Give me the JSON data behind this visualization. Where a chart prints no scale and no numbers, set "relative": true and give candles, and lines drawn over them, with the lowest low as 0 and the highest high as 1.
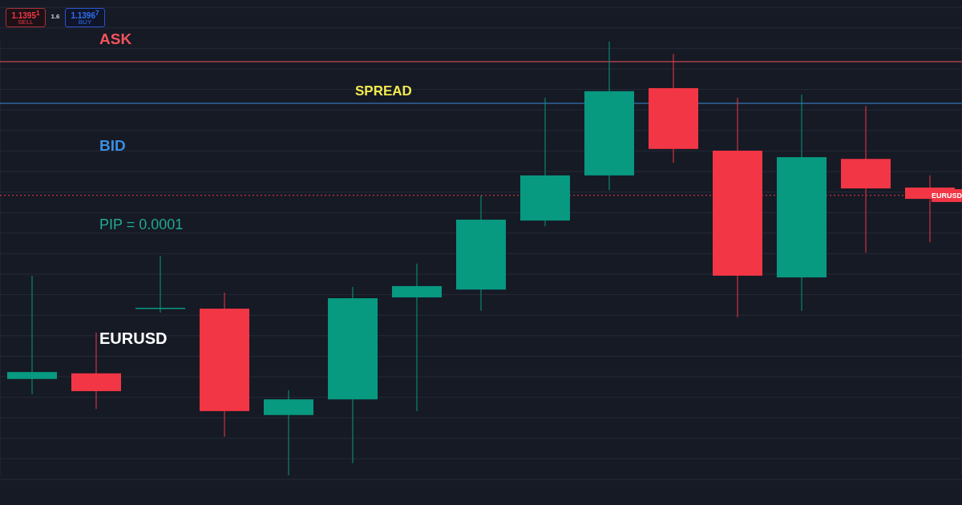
{
  "chart_data": {
    "type": "candlestick",
    "relative": true,
    "categories": [
      null,
      null,
      null,
      null,
      null,
      null,
      null,
      null,
      null,
      null,
      null,
      null,
      null,
      null,
      null
    ],
    "ohlc": [
      [
        0.222,
        0.46,
        0.187,
        0.238
      ],
      [
        0.235,
        0.329,
        0.153,
        0.194
      ],
      [
        0.384,
        0.506,
        0.375,
        0.386
      ],
      [
        0.384,
        0.421,
        0.089,
        0.148
      ],
      [
        0.139,
        0.196,
        0,
        0.175
      ],
      [
        0.175,
        0.434,
        0.028,
        0.408
      ],
      [
        0.41,
        0.488,
        0.148,
        0.436
      ],
      [
        0.428,
        0.645,
        0.379,
        0.589
      ],
      [
        0.587,
        0.87,
        0.574,
        0.691
      ],
      [
        0.691,
        1,
        0.657,
        0.885
      ],
      [
        0.892,
        0.971,
        0.72,
        0.752
      ],
      [
        0.748,
        0.87,
        0.364,
        0.46
      ],
      [
        0.456,
        0.877,
        0.379,
        0.733
      ],
      [
        0.729,
        0.851,
        0.513,
        0.661
      ],
      [
        0.663,
        0.691,
        0.537,
        0.637
      ]
    ],
    "colors": [
      "#089981",
      "#f23645",
      "#089981",
      "#f23645",
      "#089981",
      "#089981",
      "#089981",
      "#089981",
      "#089981",
      "#089981",
      "#f23645",
      "#f23645",
      "#089981",
      "#f23645",
      "#f23645"
    ],
    "ref_lines": [
      {
        "axis": "y",
        "value": 0.953,
        "label": "ASK",
        "color": "#f0525a"
      },
      {
        "axis": "y",
        "value": 0.857,
        "label": "BID",
        "color": "#3b8de0"
      },
      {
        "axis": "y",
        "value": 0.645,
        "label": "EURUSD",
        "color": "#f23645",
        "line_style": "dotted"
      }
    ],
    "annotations": [
      "1.1395$^{1}$",
      "SELL",
      "1.6",
      "1.1396$^{7}$",
      "BUY",
      "SPREAD",
      "PIP = 0.0001",
      "EURUSD"
    ],
    "grid": true
  }
}
